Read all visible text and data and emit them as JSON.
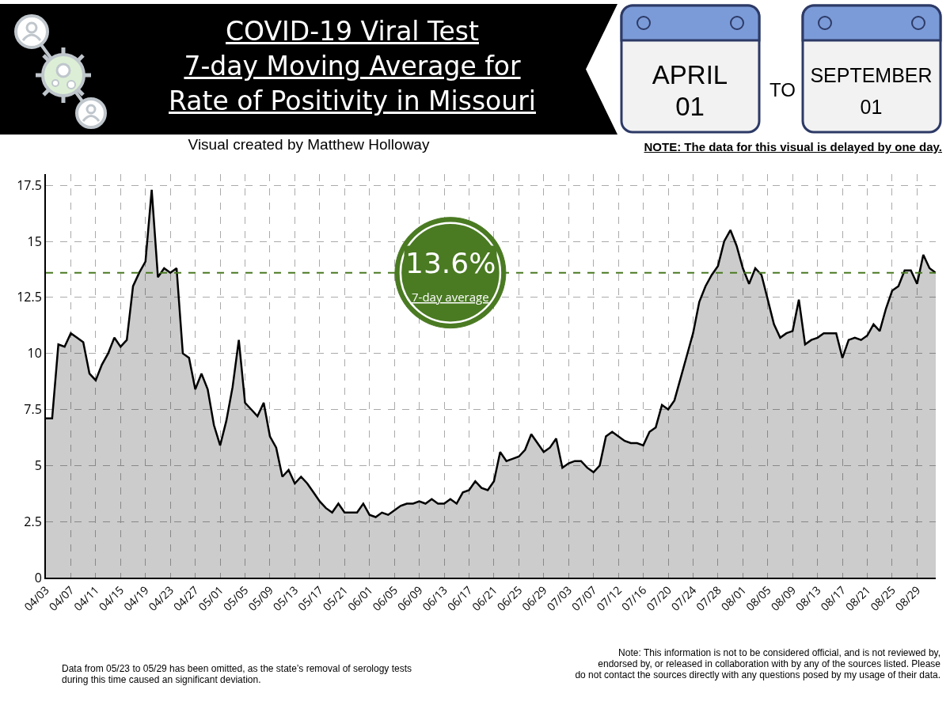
{
  "chart_data": {
    "type": "area",
    "title": "COVID-19 Viral Test\n7-day Moving Average for\nRate of Positivity in Missouri",
    "subtitle": "Visual created by Matthew Holloway",
    "categories": [
      "04/03",
      null,
      null,
      null,
      "04/07",
      null,
      null,
      null,
      "04/11",
      null,
      null,
      null,
      "04/15",
      null,
      null,
      null,
      "04/19",
      null,
      null,
      null,
      "04/23",
      null,
      null,
      null,
      "04/27",
      null,
      null,
      null,
      "05/01",
      null,
      null,
      null,
      "05/05",
      null,
      null,
      null,
      "05/09",
      null,
      null,
      null,
      "05/13",
      null,
      null,
      null,
      "05/17",
      null,
      null,
      null,
      "05/21",
      null,
      null,
      null,
      "06/01",
      null,
      null,
      null,
      "06/05",
      null,
      null,
      null,
      "06/09",
      null,
      null,
      null,
      "06/13",
      null,
      null,
      null,
      "06/17",
      null,
      null,
      null,
      "06/21",
      null,
      null,
      null,
      "06/25",
      null,
      null,
      null,
      "06/29",
      null,
      null,
      null,
      "07/03",
      null,
      null,
      null,
      "07/07",
      null,
      null,
      null,
      "07/12",
      null,
      null,
      null,
      "07/16",
      null,
      null,
      null,
      "07/20",
      null,
      null,
      null,
      "07/24",
      null,
      null,
      null,
      "07/28",
      null,
      null,
      null,
      "08/01",
      null,
      null,
      null,
      "08/05",
      null,
      null,
      null,
      "08/09",
      null,
      null,
      null,
      "08/13",
      null,
      null,
      null,
      "08/17",
      null,
      null,
      null,
      "08/21",
      null,
      null,
      null,
      "08/25",
      null,
      null,
      null,
      "08/29",
      null,
      null,
      null
    ],
    "series": [
      {
        "color": "#000000",
        "values": [
          7.1,
          7.1,
          10.4,
          10.3,
          10.9,
          10.7,
          10.5,
          9.1,
          8.8,
          9.5,
          10.0,
          10.7,
          10.3,
          10.6,
          13.0,
          13.6,
          14.1,
          17.3,
          13.4,
          13.8,
          13.6,
          13.8,
          10.0,
          9.8,
          8.4,
          9.1,
          8.4,
          6.8,
          5.9,
          7.0,
          8.5,
          10.6,
          7.8,
          7.5,
          7.2,
          7.8,
          6.3,
          5.8,
          4.5,
          4.8,
          4.2,
          4.5,
          4.2,
          3.8,
          3.4,
          3.1,
          2.9,
          3.3,
          2.9,
          2.9,
          2.9,
          3.3,
          2.8,
          2.7,
          2.9,
          2.8,
          3.0,
          3.2,
          3.3,
          3.3,
          3.4,
          3.3,
          3.5,
          3.3,
          3.3,
          3.5,
          3.3,
          3.8,
          3.9,
          4.3,
          4.0,
          3.9,
          4.3,
          5.6,
          5.2,
          5.3,
          5.4,
          5.7,
          6.4,
          6.0,
          5.6,
          5.8,
          6.2,
          4.9,
          5.1,
          5.2,
          5.2,
          4.9,
          4.7,
          5.0,
          6.3,
          6.5,
          6.3,
          6.1,
          6.0,
          6.0,
          5.9,
          6.5,
          6.7,
          7.7,
          7.5,
          7.9,
          8.9,
          9.9,
          10.9,
          12.3,
          13.0,
          13.5,
          13.9,
          15.0,
          15.5,
          14.8,
          13.8,
          13.1,
          13.8,
          13.5,
          12.4,
          11.3,
          10.7,
          10.9,
          11.0,
          12.4,
          10.4,
          10.6,
          10.7,
          10.9,
          10.9,
          10.9,
          9.8,
          10.6,
          10.7,
          10.6,
          10.8,
          11.3,
          11.0,
          12.0,
          12.8,
          13.0,
          13.7,
          13.7,
          13.1,
          14.4,
          13.8,
          13.6
        ]
      }
    ],
    "ylim": [
      0,
      18
    ],
    "yticks": [
      0,
      2.5,
      5,
      7.5,
      10,
      12.5,
      15,
      17.5
    ],
    "grid": true,
    "line_style": "solid",
    "ref_lines": [
      {
        "axis": "y",
        "value": 13.6,
        "label": "13.6%",
        "color": "#4a7a22",
        "line_style": "dashed"
      }
    ],
    "annotations": [
      "APRIL\n01",
      "TO",
      "SEPTEMBER\n01",
      "NOTE: The data for this visual is delayed by one day.",
      "7-day average",
      "Data from 05/23 to 05/29 has been omitted, as the state’s removal of serology tests\nduring this time caused an significant deviation.",
      "Note: This information is not to be considered official, and is not reviewed by,\nendorsed by, or released in collaboration with by any of the sources listed.  Please\ndo not contact the sources directly with any questions posed by my usage of their data."
    ]
  }
}
